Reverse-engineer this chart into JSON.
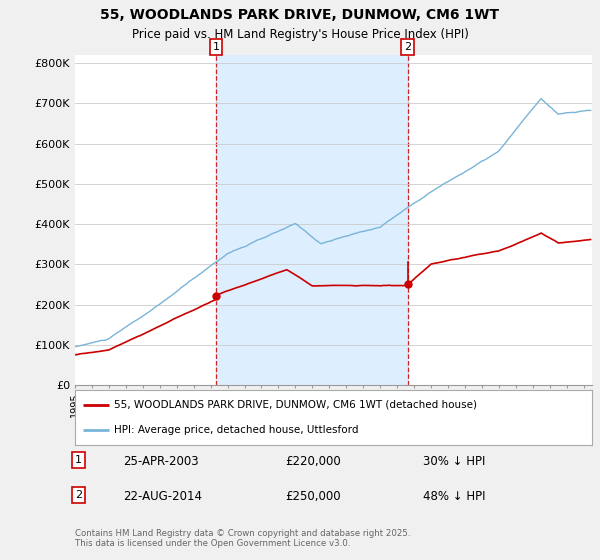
{
  "title": "55, WOODLANDS PARK DRIVE, DUNMOW, CM6 1WT",
  "subtitle": "Price paid vs. HM Land Registry's House Price Index (HPI)",
  "ylim": [
    0,
    820000
  ],
  "yticks": [
    0,
    100000,
    200000,
    300000,
    400000,
    500000,
    600000,
    700000,
    800000
  ],
  "ytick_labels": [
    "£0",
    "£100K",
    "£200K",
    "£300K",
    "£400K",
    "£500K",
    "£600K",
    "£700K",
    "£800K"
  ],
  "hpi_color": "#7ab4d8",
  "price_color": "#cc0000",
  "shade_color": "#ddeeff",
  "sale1_year": 2003.31,
  "sale2_year": 2014.63,
  "sale1_price_val": 220000,
  "sale2_price_val": 250000,
  "marker1_label": "1",
  "marker2_label": "2",
  "sale1_date": "25-APR-2003",
  "sale1_price": "£220,000",
  "sale1_pct": "30% ↓ HPI",
  "sale2_date": "22-AUG-2014",
  "sale2_price": "£250,000",
  "sale2_pct": "48% ↓ HPI",
  "legend_line1": "55, WOODLANDS PARK DRIVE, DUNMOW, CM6 1WT (detached house)",
  "legend_line2": "HPI: Average price, detached house, Uttlesford",
  "footer": "Contains HM Land Registry data © Crown copyright and database right 2025.\nThis data is licensed under the Open Government Licence v3.0.",
  "background_color": "#f0f0f0",
  "plot_bg_color": "#ffffff",
  "x_start_year": 1995,
  "x_end_year": 2025
}
